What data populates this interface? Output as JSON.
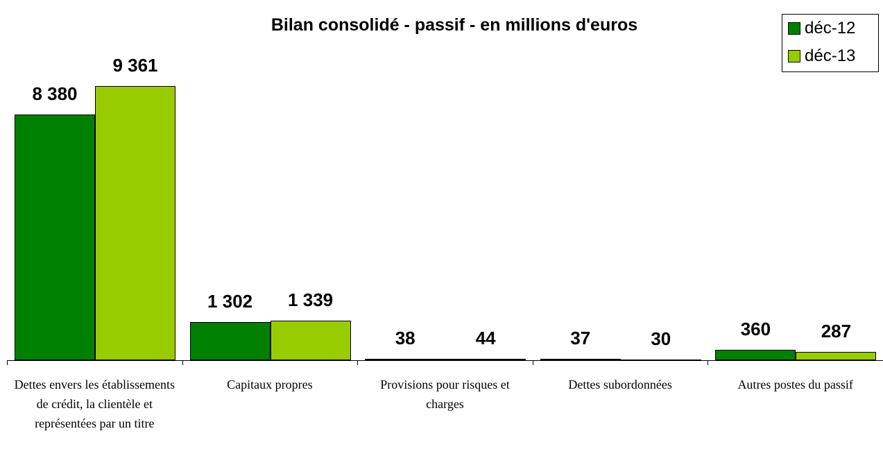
{
  "chart_data": {
    "type": "bar",
    "title": "Bilan consolidé - passif - en millions d'euros",
    "categories": [
      "Dettes envers les établissements de crédit, la clientèle et représentées par un titre",
      "Capitaux propres",
      "Provisions pour risques et charges",
      "Dettes subordonnées",
      "Autres postes du passif"
    ],
    "series": [
      {
        "name": "déc-12",
        "color": "#008000",
        "values": [
          8380,
          1302,
          38,
          37,
          360
        ],
        "value_labels": [
          "8 380",
          "1 302",
          "38",
          "37",
          "360"
        ]
      },
      {
        "name": "déc-13",
        "color": "#99cc00",
        "values": [
          9361,
          1339,
          44,
          30,
          287
        ],
        "value_labels": [
          "9 361",
          "1 339",
          "44",
          "30",
          "287"
        ]
      }
    ],
    "legend": "top-right"
  }
}
